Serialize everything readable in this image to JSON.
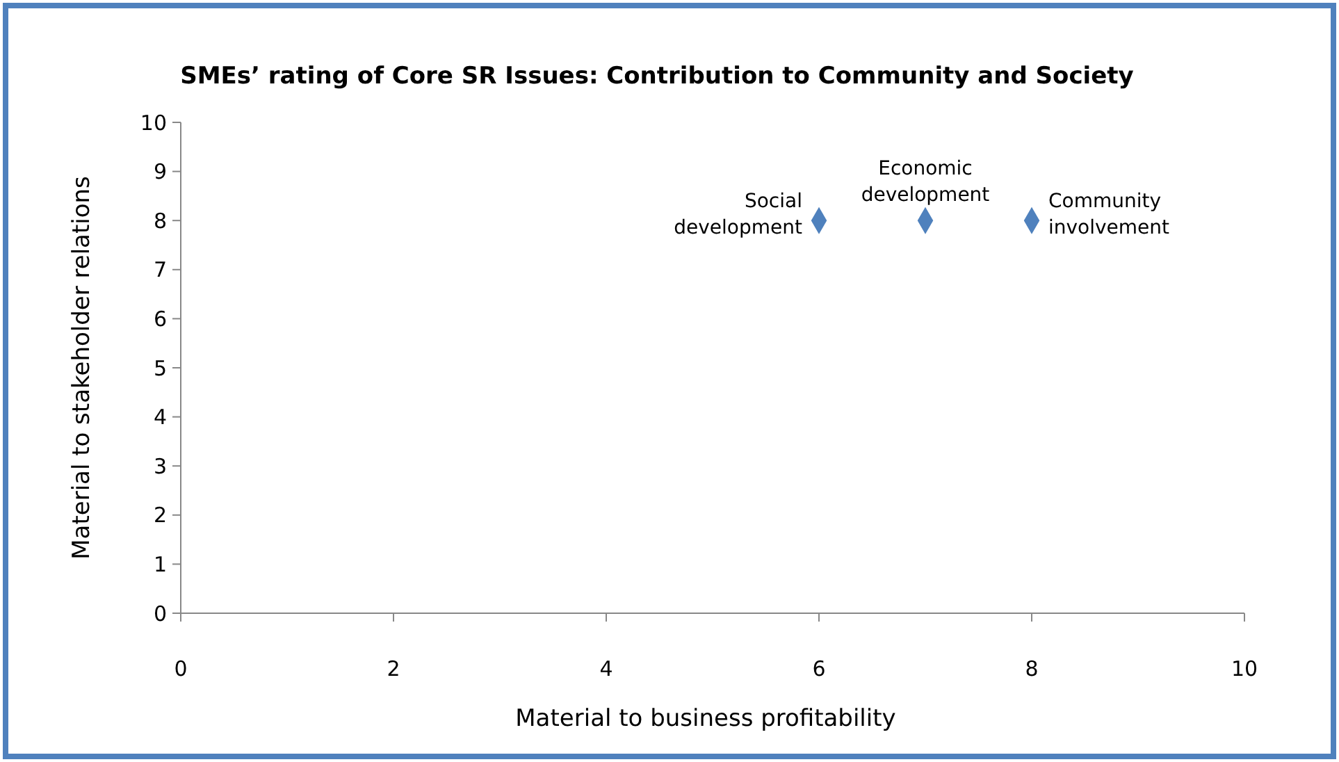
{
  "chart_data": {
    "type": "scatter",
    "title": "SMEs’ rating of Core SR Issues: Contribution to Community and Society",
    "xlabel": "Material to business profitability",
    "ylabel": "Material to stakeholder relations",
    "x": [
      6,
      7,
      8
    ],
    "series": [
      {
        "color": "#4f81bd",
        "values": [
          8,
          8,
          8
        ]
      }
    ],
    "xlim": [
      0,
      10
    ],
    "xticks": [
      0,
      2,
      4,
      6,
      8,
      10
    ],
    "ylim": [
      0,
      10
    ],
    "yticks": [
      0,
      1,
      2,
      3,
      4,
      5,
      6,
      7,
      8,
      9,
      10
    ],
    "marker": "diamond",
    "grid": false,
    "annotations": [
      {
        "text": "Social\ndevelopment",
        "x": 6,
        "y": 8
      },
      {
        "text": "Economic\ndevelopment",
        "x": 7,
        "y": 8
      },
      {
        "text": "Community\ninvolvement",
        "x": 8,
        "y": 8
      }
    ]
  }
}
